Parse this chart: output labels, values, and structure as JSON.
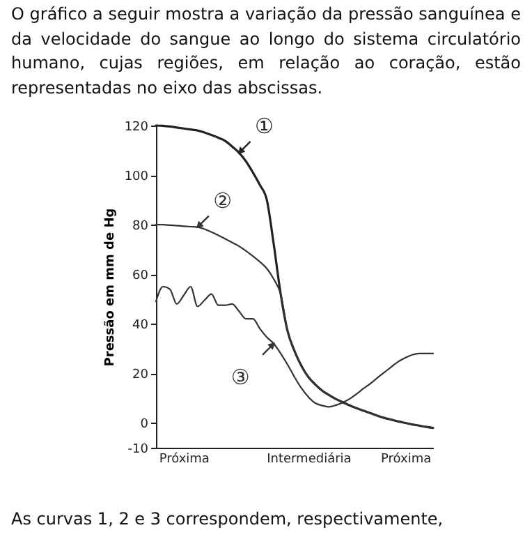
{
  "chart_data": {
    "type": "line",
    "title": "O gráfico a seguir mostra a variação da pressão sanguínea e da velocidade do sangue ao longo do sistema circulatório humano, cujas regiões, em relação ao coração, estão representadas no eixo das abscissas.",
    "ylabel": "Pressão em mm de Hg",
    "categories": [
      null,
      null,
      null,
      null,
      "Próxima",
      null,
      null,
      null,
      null,
      null,
      null,
      null,
      null,
      null,
      null,
      null,
      null,
      null,
      null,
      null,
      null,
      null,
      "Intermediária",
      null,
      null,
      null,
      null,
      null,
      null,
      null,
      null,
      null,
      null,
      null,
      null,
      null,
      "Próxima",
      null,
      null,
      null,
      null
    ],
    "ylim": [
      -10,
      120
    ],
    "yticks": [
      -10,
      0,
      20,
      40,
      60,
      80,
      100,
      120
    ],
    "line_style": "solid",
    "series": [
      {
        "name": "①",
        "color": "#222222",
        "values": [
          120,
          119.9,
          119.6,
          119.2,
          118.8,
          118.4,
          118,
          117.2,
          116.2,
          115.1,
          113.8,
          111.5,
          109,
          105.5,
          101,
          96,
          90,
          72,
          52,
          37,
          29,
          23,
          18.5,
          15.5,
          13,
          11.2,
          9.6,
          8.3,
          7,
          5.9,
          4.9,
          3.9,
          2.9,
          2,
          1.3,
          0.6,
          0,
          -0.6,
          -1.1,
          -1.6,
          -2
        ]
      },
      {
        "name": "②",
        "color": "#333333",
        "values": [
          80,
          80,
          79.8,
          79.6,
          79.4,
          79.2,
          79,
          78.2,
          77,
          75.7,
          74.3,
          72.8,
          71.3,
          69.4,
          67.3,
          65,
          62.3,
          58,
          52,
          37,
          29,
          23,
          18.5,
          15.5,
          13,
          11.2,
          9.6,
          8.3,
          7,
          5.9,
          4.9,
          3.9,
          2.9,
          2,
          1.3,
          0.6,
          0,
          -0.6,
          -1.1,
          -1.6,
          -2
        ]
      },
      {
        "name": "③",
        "color": "#333333",
        "values": [
          49,
          55,
          54,
          48,
          51.5,
          55,
          47,
          49.5,
          52,
          47.5,
          47.5,
          48,
          45,
          42,
          42,
          38,
          34.6,
          32,
          28,
          23.5,
          18.5,
          14,
          10.5,
          8,
          7,
          6.5,
          7.2,
          8.3,
          9.8,
          11.8,
          14,
          16,
          18.3,
          20.5,
          22.7,
          24.8,
          26.3,
          27.5,
          28,
          28,
          28
        ]
      }
    ],
    "annotations": [
      "As curvas 1, 2 e 3 correspondem, respectivamente,"
    ]
  }
}
